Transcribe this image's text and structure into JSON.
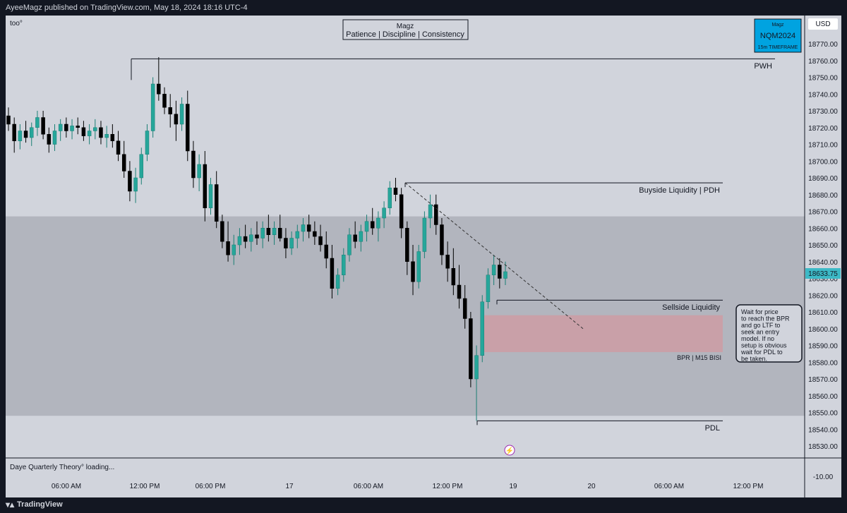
{
  "header": {
    "published": "AyeeMagz published on TradingView.com, May 18, 2024 18:16 UTC-4"
  },
  "symbol_short": "too°",
  "title_box": {
    "name": "Magz",
    "motto": "Patience | Discipline | Consistency"
  },
  "badge": {
    "top": "Magz",
    "symbol": "NQM2024",
    "timeframe": "15m TIMEFRAME"
  },
  "currency": "USD",
  "current_price": "18633.75",
  "indicator_status": "Daye Quarterly Theory° loading...",
  "footer": {
    "brand": "TradingView"
  },
  "colors": {
    "background": "#d1d4dc",
    "range_zone": "#b2b5be",
    "bpr_zone": "#d09aa0",
    "bull": "#26a69a",
    "bear": "#000000",
    "price_tag": "#3cb9c6",
    "badge": "#00a3e0"
  },
  "levels": {
    "pwh": "PWH",
    "buyside": "Buyside Liquidity | PDH",
    "sellside": "Sellside Liquidity",
    "bpr": "BPR | M15 BISI",
    "pdl": "PDL"
  },
  "note": "Wait for  price to reach the BPR and go LTF to seek an entry model. If no setup is obvious wait for PDL to be taken.",
  "y_axis_labels": [
    "18770.00",
    "18760.00",
    "18750.00",
    "18740.00",
    "18730.00",
    "18720.00",
    "18710.00",
    "18700.00",
    "18690.00",
    "18680.00",
    "18670.00",
    "18660.00",
    "18650.00",
    "18640.00",
    "18630.00",
    "18620.00",
    "18610.00",
    "18600.00",
    "18590.00",
    "18580.00",
    "18570.00",
    "18560.00",
    "18550.00",
    "18540.00",
    "18530.00"
  ],
  "y_axis_sub": "-10.00",
  "x_axis_labels": [
    "06:00 AM",
    "12:00 PM",
    "06:00 PM",
    "17",
    "06:00 AM",
    "12:00 PM",
    "19",
    "20",
    "06:00 AM",
    "12:00 PM"
  ],
  "chart_data": {
    "type": "candlestick",
    "symbol": "NQM2024",
    "timeframe": "15m",
    "ylim": [
      18525,
      18778
    ],
    "x_ticks": [
      "06:00 AM",
      "12:00 PM",
      "06:00 PM",
      "17",
      "06:00 AM",
      "12:00 PM",
      "19",
      "20",
      "06:00 AM",
      "12:00 PM"
    ],
    "levels": [
      {
        "label": "PWH",
        "price": 18761
      },
      {
        "label": "Buyside Liquidity | PDH",
        "price": 18687
      },
      {
        "label": "Sellside Liquidity",
        "price": 18617
      },
      {
        "label": "PDL",
        "price": 18545
      }
    ],
    "zones": [
      {
        "label": "",
        "from": 18548,
        "to": 18667
      },
      {
        "label": "BPR | M15 BISI",
        "from": 18586,
        "to": 18608
      }
    ],
    "trendline": {
      "from": 18687,
      "to": 18600
    },
    "last_price": 18633.75,
    "candles": [
      [
        18727,
        18732,
        18718,
        18722
      ],
      [
        18722,
        18726,
        18705,
        18712
      ],
      [
        18712,
        18722,
        18707,
        18718
      ],
      [
        18718,
        18724,
        18711,
        18714
      ],
      [
        18714,
        18723,
        18709,
        18720
      ],
      [
        18720,
        18730,
        18715,
        18726
      ],
      [
        18726,
        18730,
        18713,
        18716
      ],
      [
        18716,
        18720,
        18705,
        18710
      ],
      [
        18710,
        18722,
        18706,
        18718
      ],
      [
        18718,
        18725,
        18712,
        18722
      ],
      [
        18722,
        18726,
        18714,
        18718
      ],
      [
        18718,
        18725,
        18713,
        18721
      ],
      [
        18721,
        18726,
        18716,
        18720
      ],
      [
        18720,
        18724,
        18712,
        18715
      ],
      [
        18715,
        18722,
        18710,
        18718
      ],
      [
        18718,
        18725,
        18713,
        18720
      ],
      [
        18720,
        18724,
        18710,
        18714
      ],
      [
        18714,
        18721,
        18708,
        18716
      ],
      [
        18716,
        18722,
        18708,
        18712
      ],
      [
        18712,
        18718,
        18700,
        18704
      ],
      [
        18704,
        18712,
        18690,
        18694
      ],
      [
        18694,
        18700,
        18676,
        18682
      ],
      [
        18682,
        18696,
        18675,
        18690
      ],
      [
        18690,
        18708,
        18686,
        18704
      ],
      [
        18704,
        18722,
        18700,
        18718
      ],
      [
        18718,
        18750,
        18714,
        18746
      ],
      [
        18746,
        18762,
        18736,
        18740
      ],
      [
        18740,
        18744,
        18728,
        18732
      ],
      [
        18732,
        18740,
        18720,
        18728
      ],
      [
        18728,
        18736,
        18712,
        18722
      ],
      [
        18722,
        18738,
        18718,
        18734
      ],
      [
        18734,
        18742,
        18700,
        18706
      ],
      [
        18706,
        18712,
        18684,
        18690
      ],
      [
        18690,
        18704,
        18682,
        18698
      ],
      [
        18698,
        18706,
        18664,
        18672
      ],
      [
        18672,
        18690,
        18668,
        18686
      ],
      [
        18686,
        18694,
        18660,
        18664
      ],
      [
        18664,
        18668,
        18648,
        18652
      ],
      [
        18652,
        18664,
        18640,
        18644
      ],
      [
        18644,
        18656,
        18638,
        18650
      ],
      [
        18650,
        18660,
        18644,
        18655
      ],
      [
        18655,
        18662,
        18648,
        18652
      ],
      [
        18652,
        18660,
        18646,
        18656
      ],
      [
        18656,
        18664,
        18650,
        18654
      ],
      [
        18654,
        18664,
        18648,
        18660
      ],
      [
        18660,
        18668,
        18652,
        18656
      ],
      [
        18656,
        18664,
        18650,
        18660
      ],
      [
        18660,
        18668,
        18652,
        18654
      ],
      [
        18654,
        18660,
        18642,
        18648
      ],
      [
        18648,
        18658,
        18644,
        18654
      ],
      [
        18654,
        18662,
        18648,
        18658
      ],
      [
        18658,
        18666,
        18652,
        18662
      ],
      [
        18662,
        18668,
        18654,
        18658
      ],
      [
        18658,
        18664,
        18650,
        18655
      ],
      [
        18655,
        18662,
        18646,
        18650
      ],
      [
        18650,
        18658,
        18636,
        18642
      ],
      [
        18642,
        18650,
        18618,
        18624
      ],
      [
        18624,
        18636,
        18620,
        18632
      ],
      [
        18632,
        18648,
        18628,
        18644
      ],
      [
        18644,
        18660,
        18640,
        18656
      ],
      [
        18656,
        18664,
        18648,
        18652
      ],
      [
        18652,
        18662,
        18646,
        18658
      ],
      [
        18658,
        18668,
        18652,
        18664
      ],
      [
        18664,
        18672,
        18656,
        18660
      ],
      [
        18660,
        18670,
        18652,
        18666
      ],
      [
        18666,
        18676,
        18660,
        18672
      ],
      [
        18672,
        18688,
        18668,
        18684
      ],
      [
        18684,
        18690,
        18676,
        18680
      ],
      [
        18680,
        18684,
        18654,
        18660
      ],
      [
        18660,
        18664,
        18632,
        18640
      ],
      [
        18640,
        18650,
        18620,
        18628
      ],
      [
        18628,
        18650,
        18624,
        18646
      ],
      [
        18646,
        18670,
        18642,
        18666
      ],
      [
        18666,
        18680,
        18660,
        18674
      ],
      [
        18674,
        18680,
        18656,
        18662
      ],
      [
        18662,
        18666,
        18638,
        18644
      ],
      [
        18644,
        18652,
        18628,
        18636
      ],
      [
        18636,
        18648,
        18620,
        18626
      ],
      [
        18626,
        18638,
        18612,
        18618
      ],
      [
        18618,
        18626,
        18600,
        18606
      ],
      [
        18606,
        18610,
        18565,
        18570
      ],
      [
        18570,
        18590,
        18545,
        18584
      ],
      [
        18584,
        18620,
        18580,
        18616
      ],
      [
        18616,
        18636,
        18612,
        18632
      ],
      [
        18632,
        18644,
        18626,
        18638
      ],
      [
        18638,
        18642,
        18624,
        18630
      ],
      [
        18630,
        18640,
        18626,
        18634
      ]
    ]
  }
}
